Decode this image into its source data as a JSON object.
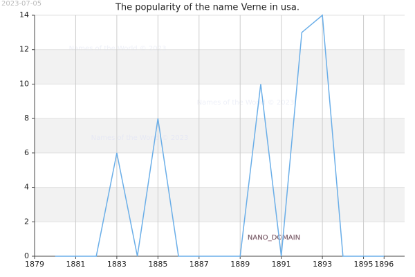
{
  "date": "2023-07-05",
  "watermarks": [
    "Names of the World © 2023",
    "Names of the World © 2023",
    "Names of the World © 2023"
  ],
  "badge": "NANO_DOMAIN",
  "chart_data": {
    "type": "line",
    "title": "The popularity of the name Verne in usa.",
    "x": [
      1880,
      1881,
      1882,
      1883,
      1884,
      1885,
      1886,
      1887,
      1888,
      1889,
      1890,
      1891,
      1892,
      1893,
      1894,
      1895,
      1896
    ],
    "series": [
      {
        "name": "Verne",
        "color": "#6aaee8",
        "values": [
          0,
          0,
          0,
          6,
          0,
          8,
          0,
          0,
          0,
          0,
          10,
          0,
          13,
          14,
          0,
          0,
          0
        ]
      }
    ],
    "xlim": [
      1879,
      1897
    ],
    "xticks": [
      1879,
      1881,
      1883,
      1885,
      1887,
      1889,
      1891,
      1893,
      1895,
      1896
    ],
    "ylim": [
      0,
      14
    ],
    "yticks": [
      0,
      2,
      4,
      6,
      8,
      10,
      12,
      14
    ],
    "grid": true
  }
}
